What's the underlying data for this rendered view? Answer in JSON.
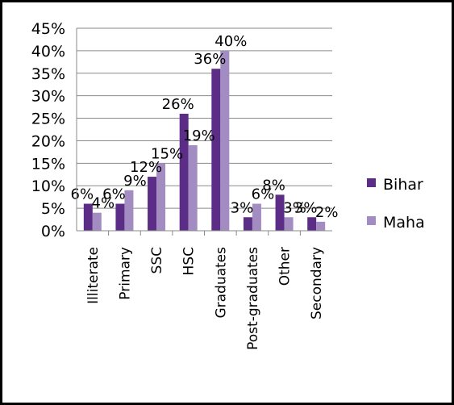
{
  "chart_data": {
    "type": "bar",
    "categories": [
      "Illiterate",
      "Primary",
      "SSC",
      "HSC",
      "Graduates",
      "Post-graduates",
      "Other",
      "Secondary"
    ],
    "series": [
      {
        "name": "Bihar",
        "values": [
          6,
          6,
          12,
          26,
          36,
          3,
          8,
          3
        ],
        "labels": [
          "6%",
          "6%",
          "12%",
          "26%",
          "36%",
          "3%",
          "8%",
          "3%"
        ],
        "color": "#5b2d86"
      },
      {
        "name": "Maha",
        "values": [
          4,
          9,
          15,
          19,
          40,
          6,
          3,
          2
        ],
        "labels": [
          "4%",
          "9%",
          "15%",
          "19%",
          "40%",
          "6%",
          "3%",
          "2%"
        ],
        "color": "#a28cc2"
      }
    ],
    "y_ticks": [
      "0%",
      "5%",
      "10%",
      "15%",
      "20%",
      "25%",
      "30%",
      "35%",
      "40%",
      "45%"
    ],
    "ylim": [
      0,
      45
    ],
    "grid": true,
    "legend_position": "right"
  }
}
